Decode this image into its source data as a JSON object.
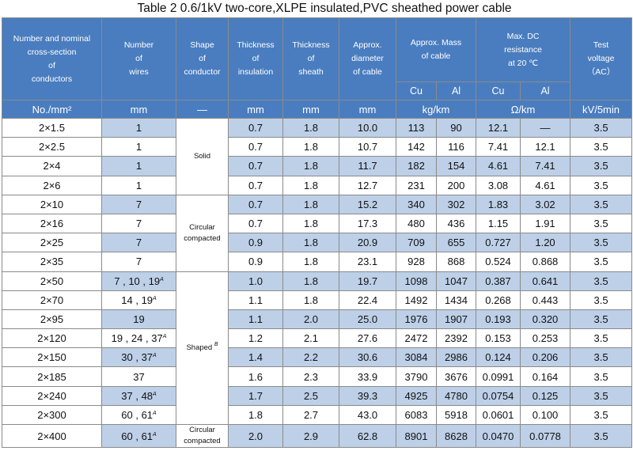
{
  "title": "Table 2    0.6/1kV two-core,XLPE insulated,PVC sheathed power cable",
  "headers": {
    "col1": [
      "Number and nominal",
      "cross-section",
      "of",
      "conductors"
    ],
    "col2": [
      "Number",
      "of",
      "wires"
    ],
    "col3": [
      "Shape",
      "of",
      "conductor"
    ],
    "col4": [
      "Thickness",
      "of",
      "insulation"
    ],
    "col5": [
      "Thickness",
      "of",
      "sheath"
    ],
    "col6": [
      "Approx.",
      "diameter",
      "of cable"
    ],
    "mass": [
      "Approx. Mass",
      "of cable"
    ],
    "resistance": [
      "Max. DC",
      "resistance",
      "at 20 ℃"
    ],
    "voltage": [
      "Test",
      "voltage",
      "（AC）"
    ],
    "mass_cu": "Cu",
    "mass_al": "Al",
    "res_cu": "Cu",
    "res_al": "Al"
  },
  "units": {
    "section": "No./mm²",
    "wires": "mm",
    "shape": "—",
    "insulation": "mm",
    "sheath": "mm",
    "diameter": "mm",
    "mass": "kg/km",
    "resistance": "Ω/km",
    "voltage": "kV/5min"
  },
  "shapes": {
    "solid": "Solid",
    "circular_compacted": [
      "Circular",
      "compacted"
    ],
    "shaped": "Shaped",
    "shaped_note": "B",
    "circular_compacted_last": [
      "Circular",
      "compacted"
    ]
  },
  "rows": [
    {
      "section": "2×1.5",
      "wires": "1",
      "wires_note": "",
      "ins": "0.7",
      "sheath": "1.8",
      "dia": "10.0",
      "mcu": "113",
      "mal": "90",
      "rcu": "12.1",
      "ral": "—",
      "volt": "3.5"
    },
    {
      "section": "2×2.5",
      "wires": "1",
      "wires_note": "",
      "ins": "0.7",
      "sheath": "1.8",
      "dia": "10.7",
      "mcu": "142",
      "mal": "116",
      "rcu": "7.41",
      "ral": "12.1",
      "volt": "3.5"
    },
    {
      "section": "2×4",
      "wires": "1",
      "wires_note": "",
      "ins": "0.7",
      "sheath": "1.8",
      "dia": "11.7",
      "mcu": "182",
      "mal": "154",
      "rcu": "4.61",
      "ral": "7.41",
      "volt": "3.5"
    },
    {
      "section": "2×6",
      "wires": "1",
      "wires_note": "",
      "ins": "0.7",
      "sheath": "1.8",
      "dia": "12.7",
      "mcu": "231",
      "mal": "200",
      "rcu": "3.08",
      "ral": "4.61",
      "volt": "3.5"
    },
    {
      "section": "2×10",
      "wires": "7",
      "wires_note": "",
      "ins": "0.7",
      "sheath": "1.8",
      "dia": "15.2",
      "mcu": "340",
      "mal": "302",
      "rcu": "1.83",
      "ral": "3.02",
      "volt": "3.5"
    },
    {
      "section": "2×16",
      "wires": "7",
      "wires_note": "",
      "ins": "0.7",
      "sheath": "1.8",
      "dia": "17.3",
      "mcu": "480",
      "mal": "436",
      "rcu": "1.15",
      "ral": "1.91",
      "volt": "3.5"
    },
    {
      "section": "2×25",
      "wires": "7",
      "wires_note": "",
      "ins": "0.9",
      "sheath": "1.8",
      "dia": "20.9",
      "mcu": "709",
      "mal": "655",
      "rcu": "0.727",
      "ral": "1.20",
      "volt": "3.5"
    },
    {
      "section": "2×35",
      "wires": "7",
      "wires_note": "",
      "ins": "0.9",
      "sheath": "1.8",
      "dia": "23.1",
      "mcu": "928",
      "mal": "868",
      "rcu": "0.524",
      "ral": "0.868",
      "volt": "3.5"
    },
    {
      "section": "2×50",
      "wires": "7 , 10 , 19",
      "wires_note": "A",
      "ins": "1.0",
      "sheath": "1.8",
      "dia": "19.7",
      "mcu": "1098",
      "mal": "1047",
      "rcu": "0.387",
      "ral": "0.641",
      "volt": "3.5"
    },
    {
      "section": "2×70",
      "wires": "14 , 19",
      "wires_note": "A",
      "ins": "1.1",
      "sheath": "1.8",
      "dia": "22.4",
      "mcu": "1492",
      "mal": "1434",
      "rcu": "0.268",
      "ral": "0.443",
      "volt": "3.5"
    },
    {
      "section": "2×95",
      "wires": "19",
      "wires_note": "",
      "ins": "1.1",
      "sheath": "2.0",
      "dia": "25.0",
      "mcu": "1976",
      "mal": "1907",
      "rcu": "0.193",
      "ral": "0.320",
      "volt": "3.5"
    },
    {
      "section": "2×120",
      "wires": "19 , 24 , 37",
      "wires_note": "A",
      "ins": "1.2",
      "sheath": "2.1",
      "dia": "27.6",
      "mcu": "2472",
      "mal": "2392",
      "rcu": "0.153",
      "ral": "0.253",
      "volt": "3.5"
    },
    {
      "section": "2×150",
      "wires": "30 , 37",
      "wires_note": "A",
      "ins": "1.4",
      "sheath": "2.2",
      "dia": "30.6",
      "mcu": "3084",
      "mal": "2986",
      "rcu": "0.124",
      "ral": "0.206",
      "volt": "3.5"
    },
    {
      "section": "2×185",
      "wires": "37",
      "wires_note": "",
      "ins": "1.6",
      "sheath": "2.3",
      "dia": "33.9",
      "mcu": "3790",
      "mal": "3676",
      "rcu": "0.0991",
      "ral": "0.164",
      "volt": "3.5"
    },
    {
      "section": "2×240",
      "wires": "37 , 48",
      "wires_note": "A",
      "ins": "1.7",
      "sheath": "2.5",
      "dia": "39.3",
      "mcu": "4925",
      "mal": "4780",
      "rcu": "0.0754",
      "ral": "0.125",
      "volt": "3.5"
    },
    {
      "section": "2×300",
      "wires": "60 , 61",
      "wires_note": "A",
      "ins": "1.8",
      "sheath": "2.7",
      "dia": "43.0",
      "mcu": "6083",
      "mal": "5918",
      "rcu": "0.0601",
      "ral": "0.100",
      "volt": "3.5"
    },
    {
      "section": "2×400",
      "wires": "60 , 61",
      "wires_note": "A",
      "ins": "2.0",
      "sheath": "2.9",
      "dia": "62.8",
      "mcu": "8901",
      "mal": "8628",
      "rcu": "0.0470",
      "ral": "0.0778",
      "volt": "3.5"
    }
  ],
  "colors": {
    "header_bg": "#4a7dbf",
    "header_text": "#ffffff",
    "highlight_cell": "#bdd0e8",
    "border": "#8a8a8a"
  }
}
